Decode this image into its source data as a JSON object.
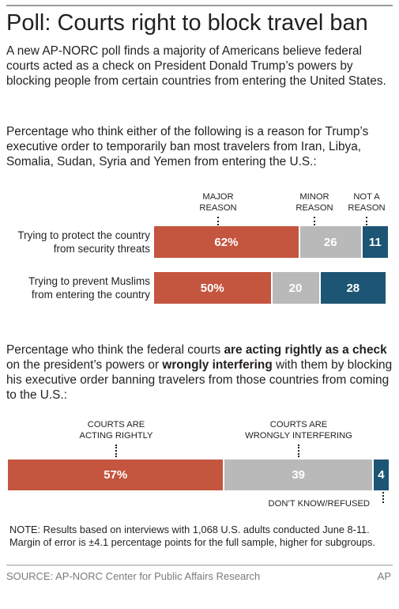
{
  "headline": "Poll: Courts right to block travel ban",
  "intro": "A new AP-NORC poll finds a majority of Americans believe federal courts acted as a check on President Donald Trump’s powers by blocking people from certain countries from entering the United States.",
  "question1": "Percentage who think either of the following is a reason for Trump’s executive order to temporarily ban most travelers from Iran, Libya, Somalia, Sudan, Syria and Yemen from entering the U.S.:",
  "question2": {
    "part1": "Percentage who think the federal courts ",
    "bold1": "are acting rightly as a check",
    "part2": " on the president’s powers or ",
    "bold2": "wrongly interfering",
    "part3": " with them by blocking his executive order banning travelers from those countries from coming to the U.S.:"
  },
  "note": "NOTE: Results based on interviews with 1,068 U.S. adults conducted June 8-11. Margin of error is ±4.1 percentage points for the full sample, higher for subgroups.",
  "source": "SOURCE: AP-NORC Center for Public Affairs Research",
  "credit": "AP",
  "colors": {
    "major": "#c4553f",
    "minor": "#b9b9b9",
    "not": "#1d5574"
  },
  "chart_data": [
    {
      "type": "bar",
      "orientation": "horizontal",
      "stacked": true,
      "series_labels": [
        [
          "MAJOR",
          "REASON"
        ],
        [
          "MINOR",
          "REASON"
        ],
        [
          "NOT A",
          "REASON"
        ]
      ],
      "categories": [
        [
          "Trying to protect the country",
          "from security threats"
        ],
        [
          "Trying to prevent Muslims",
          "from entering the country"
        ]
      ],
      "series": [
        {
          "values": [
            62,
            50
          ],
          "value_labels": [
            "62%",
            "50%"
          ]
        },
        {
          "values": [
            26,
            20
          ],
          "value_labels": [
            "26",
            "20"
          ]
        },
        {
          "values": [
            11,
            28
          ],
          "value_labels": [
            "11",
            "28"
          ]
        }
      ],
      "xlim": [
        0,
        100
      ]
    },
    {
      "type": "bar",
      "orientation": "horizontal",
      "stacked": true,
      "series_labels": [
        [
          "COURTS ARE",
          "ACTING RIGHTLY"
        ],
        [
          "COURTS ARE",
          "WRONGLY INTERFERING"
        ],
        [
          "DON’T KNOW/REFUSED"
        ]
      ],
      "series": [
        {
          "values": [
            57
          ],
          "value_labels": [
            "57%"
          ]
        },
        {
          "values": [
            39
          ],
          "value_labels": [
            "39"
          ]
        },
        {
          "values": [
            4
          ],
          "value_labels": [
            "4"
          ]
        }
      ],
      "xlim": [
        0,
        100
      ]
    }
  ]
}
